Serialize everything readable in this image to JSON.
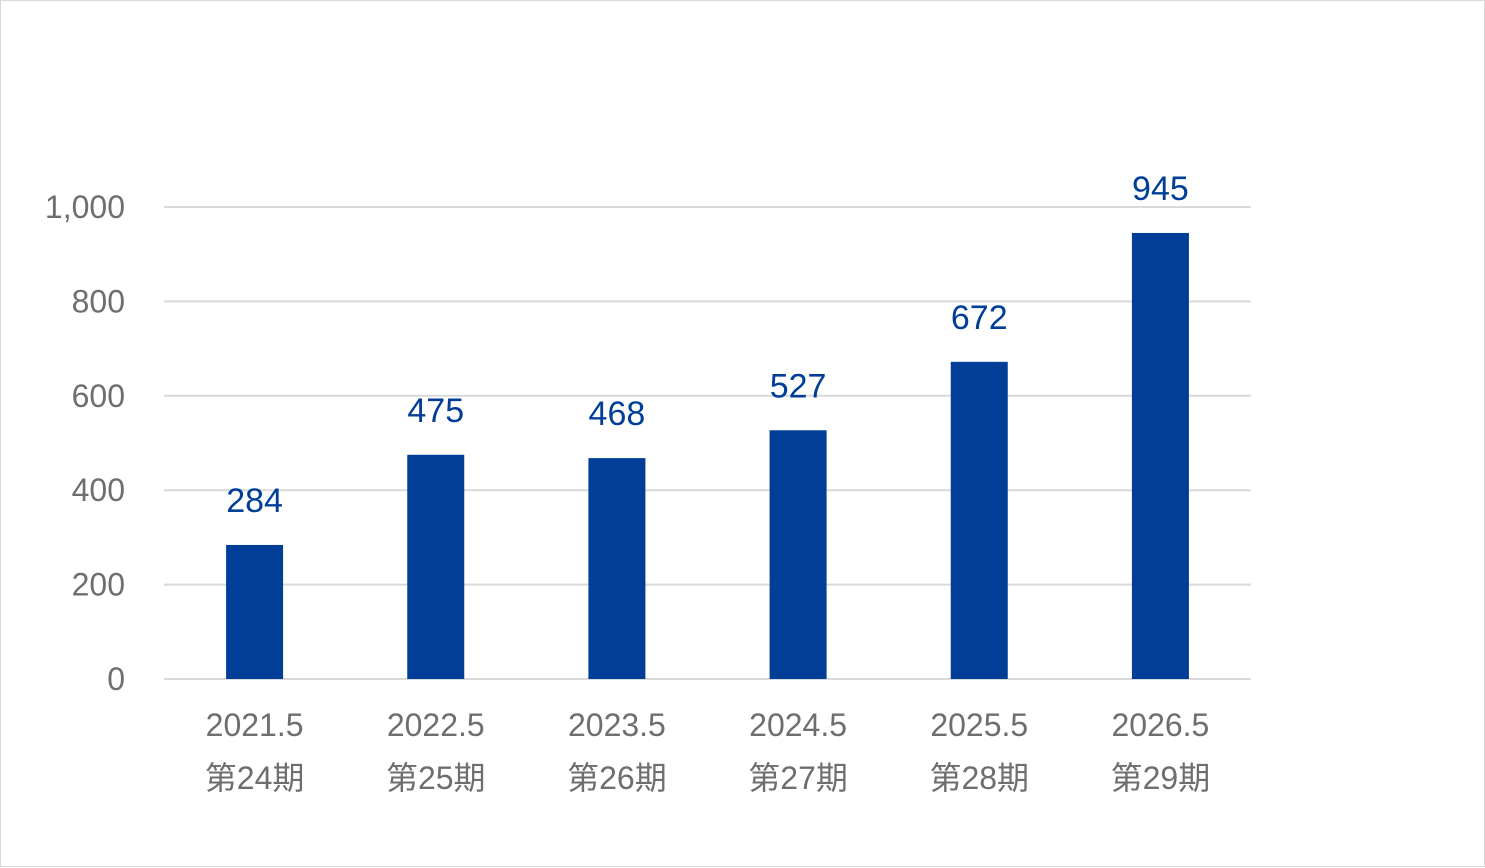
{
  "chart_data": {
    "type": "bar",
    "categories": [
      [
        "2021.5",
        "第24期"
      ],
      [
        "2022.5",
        "第25期"
      ],
      [
        "2023.5",
        "第26期"
      ],
      [
        "2024.5",
        "第27期"
      ],
      [
        "2025.5",
        "第28期"
      ],
      [
        "2026.5",
        "第29期"
      ]
    ],
    "values": [
      284,
      475,
      468,
      527,
      672,
      945
    ],
    "data_labels": [
      "284",
      "475",
      "468",
      "527",
      "672",
      "945"
    ],
    "ylim": [
      0,
      1000
    ],
    "yticks": [
      0,
      200,
      400,
      600,
      800,
      1000
    ],
    "ytick_labels": [
      "0",
      "200",
      "400",
      "600",
      "800",
      "1,000"
    ],
    "grid": true,
    "legend": "none",
    "colors": {
      "bar": "#003e97",
      "grid": "#d9d9d9",
      "tick_text": "#6e6e6e",
      "label_text": "#003e97"
    }
  }
}
